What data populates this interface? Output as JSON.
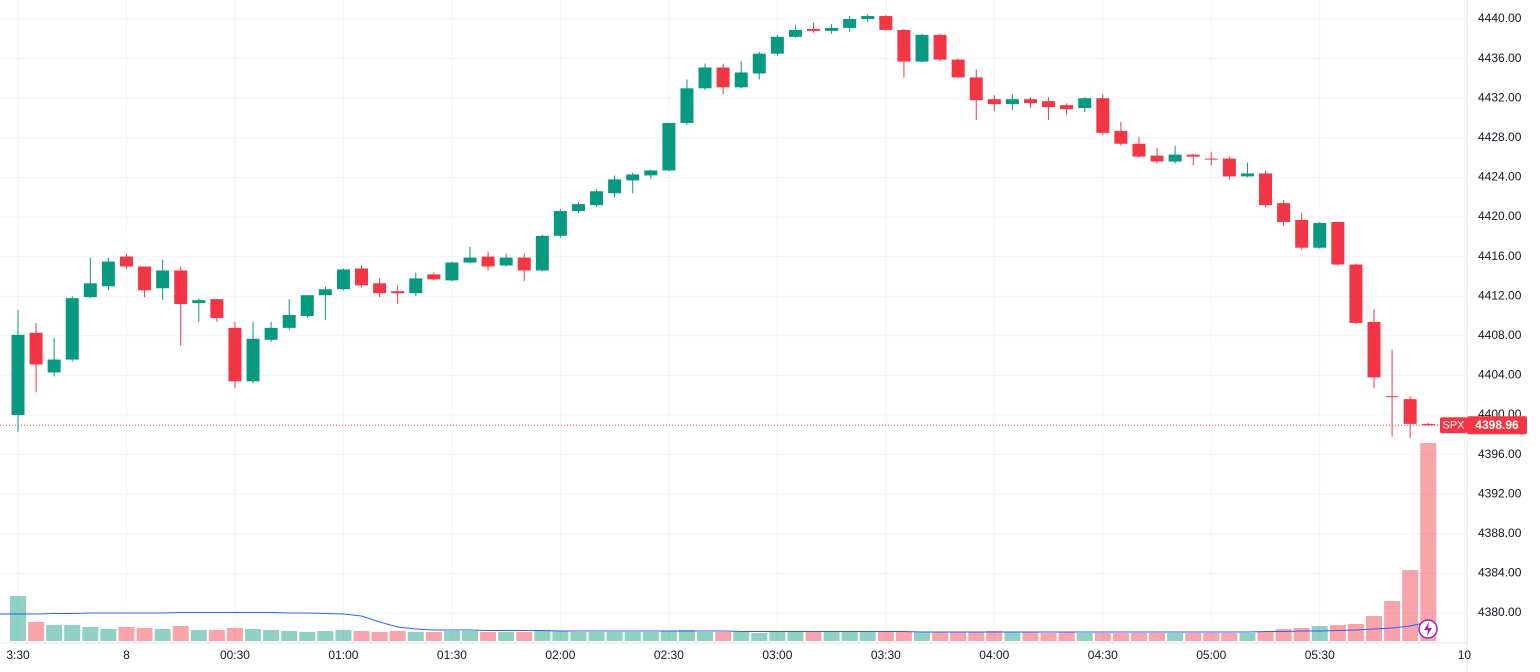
{
  "chart_data": {
    "type": "candlestick",
    "categories": [
      "3:30",
      null,
      null,
      null,
      null,
      null,
      "8",
      null,
      null,
      null,
      null,
      null,
      "00:30",
      null,
      null,
      null,
      null,
      null,
      "01:00",
      null,
      null,
      null,
      null,
      null,
      "01:30",
      null,
      null,
      null,
      null,
      null,
      "02:00",
      null,
      null,
      null,
      null,
      null,
      "02:30",
      null,
      null,
      null,
      null,
      null,
      "03:00",
      null,
      null,
      null,
      null,
      null,
      "03:30",
      null,
      null,
      null,
      null,
      null,
      "04:00",
      null,
      null,
      null,
      null,
      null,
      "04:30",
      null,
      null,
      null,
      null,
      null,
      "05:00",
      null,
      null,
      null,
      null,
      null,
      "05:30",
      null,
      null,
      null,
      null,
      null,
      null,
      null,
      "10"
    ],
    "open": [
      4400,
      4408.3,
      4404.3,
      4405.6,
      4411.9,
      4413,
      4416,
      4415,
      4412.8,
      4414.6,
      4411.3,
      4411.7,
      4408.8,
      4403.4,
      4407.6,
      4408.8,
      4410,
      4412.1,
      4412.7,
      4414.8,
      4413.3,
      4412.5,
      4412.3,
      4414.2,
      4413.6,
      4415.4,
      4416,
      4415.1,
      4415.9,
      4414.6,
      4418.1,
      4420.6,
      4421.2,
      4422.4,
      4423.7,
      4424.2,
      4424.7,
      4429.5,
      4433,
      4435.1,
      4433.1,
      4434.5,
      4436.5,
      4438.2,
      4439,
      4438.8,
      4439.1,
      4440,
      4440.3,
      4438.9,
      4435.7,
      4438.4,
      4435.9,
      4434.1,
      4431.9,
      4431.4,
      4431.9,
      4431.7,
      4431.3,
      4431,
      4432,
      4428.7,
      4427.4,
      4426.2,
      4425.6,
      4426.3,
      4425.9,
      4425.9,
      4424.1,
      4424.4,
      4421.4,
      4419.7,
      4416.9,
      4419.5,
      4415.2,
      4409.4,
      4401.9,
      4401.6,
      4399.1,
      null,
      null
    ],
    "high": [
      4410.6,
      4409.3,
      4407.8,
      4412,
      4415.9,
      4415.9,
      4416.3,
      4415,
      4415.7,
      4415,
      4411.8,
      4411.7,
      4409.4,
      4409.4,
      4409.4,
      4411.7,
      4412.1,
      4413,
      4414.8,
      4415.1,
      4413.8,
      4413.1,
      4414.4,
      4414.4,
      4415.5,
      4417,
      4416.5,
      4416.3,
      4416.3,
      4418.2,
      4420.8,
      4421.5,
      4422.8,
      4424.2,
      4424.5,
      4424.8,
      4429.5,
      4433.9,
      4435.5,
      4435.5,
      4435.7,
      4436.7,
      4438.4,
      4439.4,
      4439.6,
      4439.5,
      4440.3,
      4440.5,
      4440.4,
      4439,
      4438.5,
      4438.5,
      4436,
      4434.9,
      4432.3,
      4432.4,
      4432.1,
      4432.1,
      4431.5,
      4432.1,
      4432.4,
      4429.6,
      4428.1,
      4427,
      4427.2,
      4426.4,
      4426.6,
      4426.1,
      4425.5,
      4424.7,
      4421.7,
      4420.4,
      4419.5,
      4419.5,
      4415.3,
      4410.7,
      4406.6,
      4401.9,
      4399.2,
      null,
      null
    ],
    "low": [
      4398.3,
      4402.3,
      4403.9,
      4405.4,
      4411.8,
      4412.6,
      4414.8,
      4411.9,
      4411.6,
      4407,
      4409.4,
      4409.4,
      4402.7,
      4403.2,
      4407.4,
      4408.6,
      4409.8,
      4409.6,
      4412.6,
      4412.9,
      4411.9,
      4411.2,
      4412,
      4413.6,
      4413.5,
      4415.3,
      4414.6,
      4415,
      4413.5,
      4414.5,
      4417.9,
      4420.4,
      4421,
      4422,
      4422.4,
      4423.9,
      4424.6,
      4429.3,
      4432.8,
      4432.4,
      4433,
      4433.9,
      4436.3,
      4438.1,
      4438.6,
      4438.5,
      4438.7,
      4439.7,
      4438.8,
      4434.1,
      4435.6,
      4435.7,
      4434,
      4429.8,
      4430.7,
      4430.8,
      4431,
      4429.8,
      4430.3,
      4430.6,
      4428.3,
      4427.2,
      4426,
      4425.4,
      4425.4,
      4425.2,
      4425.2,
      4423.8,
      4424,
      4421,
      4419.1,
      4416.7,
      4416.8,
      4415.1,
      4409.2,
      4402.7,
      4397.8,
      4397.7,
      4398.9,
      null,
      null
    ],
    "close": [
      4408.1,
      4405.1,
      4405.6,
      4411.8,
      4413.3,
      4415.5,
      4415,
      4412.6,
      4414.6,
      4411.2,
      4411.6,
      4409.8,
      4403.4,
      4407.7,
      4408.8,
      4410.1,
      4412.1,
      4412.7,
      4414.7,
      4413.1,
      4412.3,
      4412.3,
      4413.8,
      4413.7,
      4415.4,
      4415.9,
      4415,
      4415.9,
      4414.6,
      4418.1,
      4420.6,
      4421.3,
      4422.6,
      4423.8,
      4424.3,
      4424.7,
      4429.5,
      4433,
      4435.1,
      4433.1,
      4434.6,
      4436.5,
      4438.2,
      4438.9,
      4438.8,
      4439.1,
      4440,
      4440.3,
      4438.9,
      4435.7,
      4438.4,
      4435.9,
      4434.1,
      4431.8,
      4431.4,
      4431.9,
      4431.5,
      4431.1,
      4430.9,
      4432,
      4428.5,
      4427.4,
      4426.1,
      4425.6,
      4426.3,
      4426.1,
      4425.8,
      4424.1,
      4424.4,
      4421.2,
      4419.5,
      4416.9,
      4419.4,
      4415.2,
      4409.3,
      4403.8,
      4401.8,
      4399.1,
      4398.96,
      null,
      null
    ],
    "volume": [
      45,
      19,
      16,
      16,
      14,
      12,
      14,
      13,
      12,
      15,
      11,
      11,
      13,
      12,
      11,
      10,
      9,
      10,
      11,
      10,
      9,
      10,
      9,
      9,
      10,
      10,
      9,
      9,
      9,
      11,
      10,
      9,
      9,
      9,
      9,
      9,
      10,
      11,
      9,
      9,
      9,
      8,
      9,
      9,
      9,
      9,
      9,
      9,
      9,
      9,
      9,
      9,
      9,
      9,
      10,
      9,
      9,
      8,
      9,
      8,
      8,
      8,
      8,
      8,
      8,
      8,
      8,
      8,
      8,
      9,
      12,
      13,
      15,
      16,
      17,
      25,
      40,
      71,
      198,
      null,
      null
    ],
    "volume_ma": [
      27,
      27,
      27.5,
      27.5,
      28,
      28,
      28,
      28,
      28,
      28.5,
      28.5,
      28.5,
      28.5,
      28.5,
      28.5,
      28,
      28,
      27.5,
      27,
      25,
      19,
      14,
      12,
      11,
      11,
      11,
      10.5,
      10.5,
      10.5,
      10.5,
      10,
      10,
      10,
      10,
      10,
      10,
      10,
      10,
      10,
      10,
      9.5,
      9.5,
      9.5,
      9.5,
      9.5,
      9.5,
      9.5,
      9.5,
      9.5,
      9.5,
      9,
      9,
      9,
      9,
      9,
      9,
      9,
      9,
      9,
      9,
      9,
      9,
      9,
      9,
      9,
      9,
      9,
      9,
      9,
      9.5,
      9.5,
      10,
      10,
      10.5,
      11,
      12,
      13,
      15,
      19,
      null,
      null
    ],
    "up_color": "#089981",
    "down_color": "#f23645",
    "ma_color": "#2962ff",
    "ylim": [
      4377.17,
      4441.92
    ],
    "yticks": [
      {
        "value": 4380,
        "label": "4380.00"
      },
      {
        "value": 4384,
        "label": "4384.00"
      },
      {
        "value": 4388,
        "label": "4388.00"
      },
      {
        "value": 4392,
        "label": "4392.00"
      },
      {
        "value": 4396,
        "label": "4396.00"
      },
      {
        "value": 4400,
        "label": "4400.00"
      },
      {
        "value": 4404,
        "label": "4404.00"
      },
      {
        "value": 4408,
        "label": "4408.00"
      },
      {
        "value": 4412,
        "label": "4412.00"
      },
      {
        "value": 4416,
        "label": "4416.00"
      },
      {
        "value": 4420,
        "label": "4420.00"
      },
      {
        "value": 4424,
        "label": "4424.00"
      },
      {
        "value": 4428,
        "label": "4428.00"
      },
      {
        "value": 4432,
        "label": "4432.00"
      },
      {
        "value": 4436,
        "label": "4436.00"
      },
      {
        "value": 4440,
        "label": "4440.00"
      }
    ],
    "grid": true,
    "symbol": "SPX",
    "last_price": 4398.96
  }
}
